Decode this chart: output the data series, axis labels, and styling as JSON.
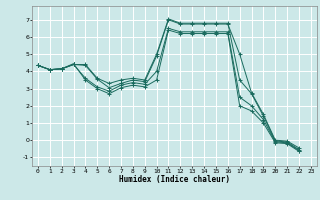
{
  "xlabel": "Humidex (Indice chaleur)",
  "background_color": "#cce8e8",
  "grid_color": "#ffffff",
  "line_color": "#1a6b5e",
  "xlim": [
    -0.5,
    23.5
  ],
  "ylim": [
    -1.5,
    7.8
  ],
  "xticks": [
    0,
    1,
    2,
    3,
    4,
    5,
    6,
    7,
    8,
    9,
    10,
    11,
    12,
    13,
    14,
    15,
    16,
    17,
    18,
    19,
    20,
    21,
    22,
    23
  ],
  "yticks": [
    -1,
    0,
    1,
    2,
    3,
    4,
    5,
    6,
    7
  ],
  "series": [
    [
      4.35,
      4.1,
      4.15,
      4.4,
      4.35,
      3.55,
      3.05,
      3.3,
      3.5,
      3.4,
      4.9,
      7.0,
      6.75,
      6.75,
      6.75,
      6.75,
      6.75,
      5.0,
      2.75,
      1.5,
      0.0,
      -0.05,
      -0.45
    ],
    [
      4.35,
      4.1,
      4.15,
      4.4,
      4.4,
      3.6,
      3.3,
      3.5,
      3.6,
      3.5,
      5.0,
      7.05,
      6.8,
      6.8,
      6.8,
      6.8,
      6.8,
      3.5,
      2.7,
      1.4,
      -0.05,
      -0.1,
      -0.55
    ],
    [
      4.35,
      4.1,
      4.15,
      4.4,
      3.6,
      3.1,
      2.85,
      3.2,
      3.35,
      3.25,
      4.0,
      6.5,
      6.3,
      6.3,
      6.3,
      6.3,
      6.3,
      2.5,
      2.0,
      1.2,
      -0.1,
      -0.15,
      -0.6
    ],
    [
      4.35,
      4.1,
      4.15,
      4.45,
      3.5,
      3.0,
      2.7,
      3.05,
      3.2,
      3.1,
      3.5,
      6.4,
      6.2,
      6.2,
      6.2,
      6.2,
      6.2,
      2.0,
      1.7,
      1.0,
      -0.15,
      -0.2,
      -0.65
    ]
  ],
  "x_values": [
    0,
    1,
    2,
    3,
    4,
    5,
    6,
    7,
    8,
    9,
    10,
    11,
    12,
    13,
    14,
    15,
    16,
    17,
    18,
    19,
    20,
    21,
    22
  ]
}
